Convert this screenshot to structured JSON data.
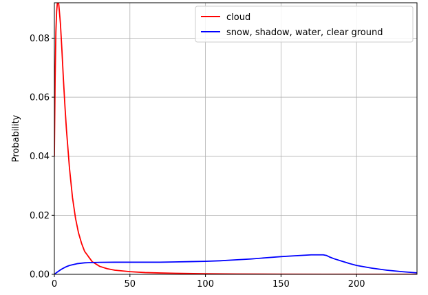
{
  "chart_data": {
    "type": "line",
    "title": "",
    "xlabel": "",
    "ylabel": "Probability",
    "xlim": [
      0,
      240
    ],
    "ylim": [
      0,
      0.092
    ],
    "xticks": [
      0,
      50,
      100,
      150,
      200
    ],
    "xtick_labels": [
      "0",
      "50",
      "100",
      "150",
      "200"
    ],
    "yticks": [
      0.0,
      0.02,
      0.04,
      0.06,
      0.08
    ],
    "ytick_labels": [
      "0.00",
      "0.02",
      "0.04",
      "0.06",
      "0.08"
    ],
    "grid": true,
    "legend_position": "top-right",
    "series": [
      {
        "name": "cloud",
        "color": "#ff0000",
        "x": [
          0,
          0.5,
          1,
          1.5,
          2,
          2.5,
          3,
          4,
          5,
          6,
          7,
          8,
          10,
          12,
          14,
          16,
          18,
          20,
          25,
          30,
          35,
          40,
          50,
          60,
          70,
          80,
          100,
          120,
          150,
          180,
          200,
          220,
          240
        ],
        "y": [
          0.04,
          0.066,
          0.082,
          0.089,
          0.092,
          0.093,
          0.091,
          0.085,
          0.076,
          0.066,
          0.057,
          0.049,
          0.036,
          0.026,
          0.019,
          0.014,
          0.0105,
          0.0078,
          0.0043,
          0.0027,
          0.0019,
          0.0014,
          0.0009,
          0.0006,
          0.00045,
          0.00035,
          0.0002,
          0.00012,
          6e-05,
          3e-05,
          2e-05,
          1e-05,
          1e-05
        ]
      },
      {
        "name": "snow, shadow, water, clear ground",
        "color": "#0000ff",
        "x": [
          0,
          2,
          4,
          6,
          8,
          10,
          15,
          20,
          25,
          30,
          40,
          50,
          60,
          70,
          80,
          90,
          100,
          110,
          120,
          130,
          140,
          150,
          160,
          170,
          175,
          178,
          180,
          182,
          185,
          190,
          195,
          200,
          210,
          220,
          230,
          240
        ],
        "y": [
          0.0,
          0.0008,
          0.0015,
          0.0021,
          0.0026,
          0.003,
          0.0036,
          0.0039,
          0.004,
          0.00405,
          0.0041,
          0.0041,
          0.0041,
          0.0041,
          0.0042,
          0.0043,
          0.0044,
          0.0046,
          0.0049,
          0.0052,
          0.0056,
          0.006,
          0.0063,
          0.0066,
          0.0066,
          0.0066,
          0.0064,
          0.0059,
          0.0053,
          0.0045,
          0.0037,
          0.003,
          0.0021,
          0.0014,
          0.0009,
          0.0005
        ]
      }
    ]
  }
}
